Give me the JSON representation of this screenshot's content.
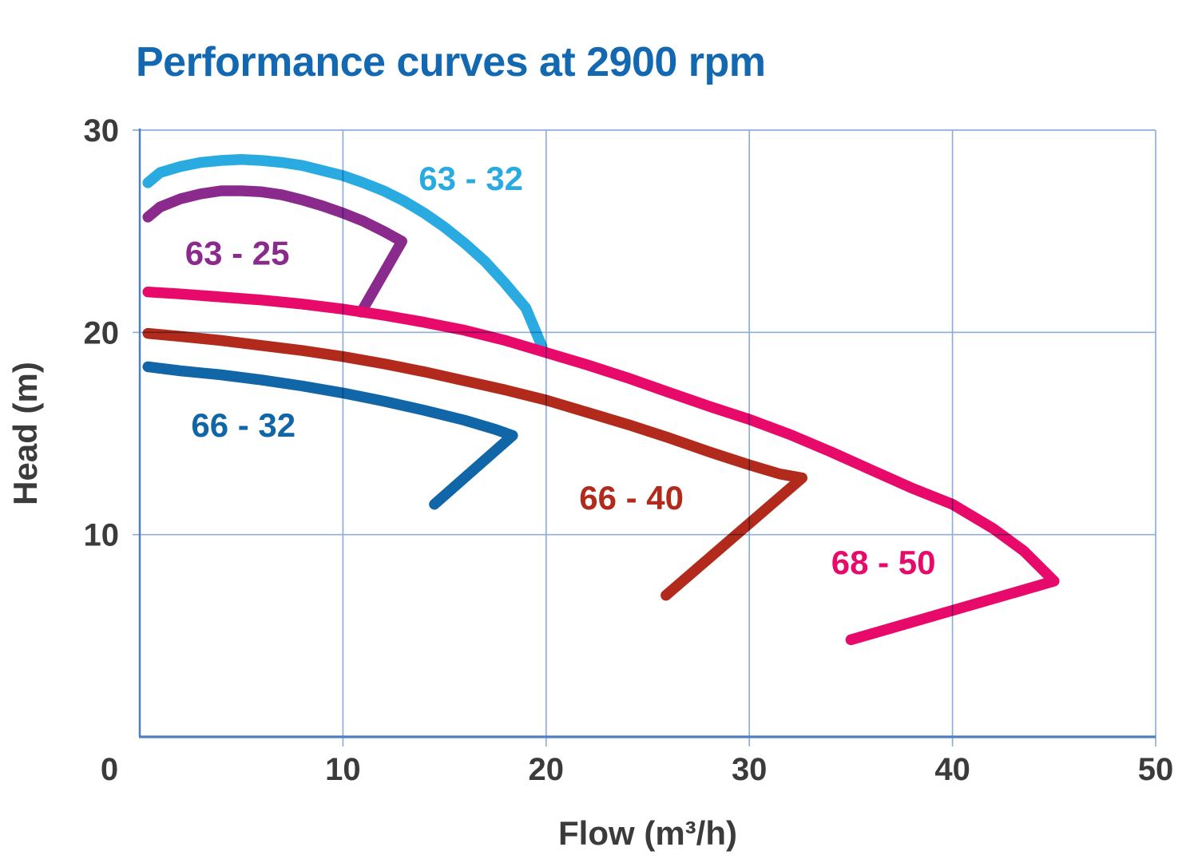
{
  "title": "Performance curves at 2900 rpm",
  "colors": {
    "title_text": "#1268B1",
    "tick_text": "#3B3B3B",
    "axis_line": "#4E7FC1",
    "grid_line": "#8FAEDB"
  },
  "chart_data": {
    "type": "line",
    "title": "Performance curves at 2900 rpm",
    "xlabel": "Flow (m³/h)",
    "ylabel": "Head (m)",
    "xlim": [
      0,
      50
    ],
    "ylim": [
      0,
      30
    ],
    "xticks": [
      0,
      10,
      20,
      30,
      40,
      50
    ],
    "yticks_labeled": [
      10,
      20,
      30
    ],
    "grid": true,
    "grid_note": "light blue gridlines drawn over the curves, full plot box bounded left/bottom by darker blue axes",
    "series": [
      {
        "name": "63 - 32",
        "color": "#29ABE2",
        "label_pos": [
          16.3,
          27.6
        ],
        "points": [
          [
            0.4,
            27.4
          ],
          [
            1,
            27.9
          ],
          [
            2,
            28.2
          ],
          [
            3,
            28.4
          ],
          [
            4,
            28.5
          ],
          [
            5,
            28.55
          ],
          [
            6,
            28.5
          ],
          [
            7,
            28.4
          ],
          [
            8,
            28.25
          ],
          [
            9,
            28.0
          ],
          [
            10,
            27.75
          ],
          [
            11,
            27.4
          ],
          [
            12,
            27.0
          ],
          [
            13,
            26.5
          ],
          [
            14,
            25.9
          ],
          [
            15,
            25.2
          ],
          [
            16,
            24.4
          ],
          [
            17,
            23.5
          ],
          [
            18,
            22.4
          ],
          [
            19,
            21.2
          ],
          [
            19.8,
            19.3
          ]
        ]
      },
      {
        "name": "63 - 25",
        "color": "#8A2A8C",
        "label_pos": [
          4.8,
          23.9
        ],
        "points": [
          [
            0.4,
            25.7
          ],
          [
            1,
            26.2
          ],
          [
            2,
            26.6
          ],
          [
            3,
            26.85
          ],
          [
            4,
            27.0
          ],
          [
            5,
            27.0
          ],
          [
            6,
            26.95
          ],
          [
            7,
            26.8
          ],
          [
            8,
            26.55
          ],
          [
            9,
            26.25
          ],
          [
            10,
            25.9
          ],
          [
            11,
            25.5
          ],
          [
            12,
            25.0
          ],
          [
            12.9,
            24.5
          ],
          [
            10.9,
            21.0
          ]
        ]
      },
      {
        "name": "66 - 32",
        "color": "#1166A8",
        "label_pos": [
          5.1,
          15.4
        ],
        "points": [
          [
            0.4,
            18.3
          ],
          [
            2,
            18.1
          ],
          [
            4,
            17.9
          ],
          [
            6,
            17.65
          ],
          [
            8,
            17.35
          ],
          [
            10,
            17.0
          ],
          [
            12,
            16.6
          ],
          [
            14,
            16.15
          ],
          [
            16,
            15.65
          ],
          [
            17.5,
            15.2
          ],
          [
            18.35,
            14.9
          ],
          [
            14.5,
            11.5
          ]
        ]
      },
      {
        "name": "66 - 40",
        "color": "#B12A1B",
        "label_pos": [
          24.2,
          11.8
        ],
        "points": [
          [
            0.4,
            19.95
          ],
          [
            2,
            19.8
          ],
          [
            4,
            19.6
          ],
          [
            6,
            19.35
          ],
          [
            8,
            19.1
          ],
          [
            10,
            18.8
          ],
          [
            12,
            18.45
          ],
          [
            14,
            18.05
          ],
          [
            16,
            17.6
          ],
          [
            18,
            17.15
          ],
          [
            20,
            16.65
          ],
          [
            22,
            16.05
          ],
          [
            24,
            15.45
          ],
          [
            26,
            14.8
          ],
          [
            28,
            14.1
          ],
          [
            30,
            13.45
          ],
          [
            31.5,
            13.0
          ],
          [
            32.6,
            12.8
          ],
          [
            25.9,
            7.0
          ]
        ]
      },
      {
        "name": "68 - 50",
        "color": "#E80A6B",
        "label_pos": [
          36.6,
          8.6
        ],
        "points": [
          [
            0.4,
            22.0
          ],
          [
            2,
            21.9
          ],
          [
            4,
            21.75
          ],
          [
            6,
            21.6
          ],
          [
            8,
            21.4
          ],
          [
            10,
            21.15
          ],
          [
            12,
            20.85
          ],
          [
            14,
            20.5
          ],
          [
            16,
            20.1
          ],
          [
            18,
            19.6
          ],
          [
            20,
            19.0
          ],
          [
            22,
            18.4
          ],
          [
            24,
            17.75
          ],
          [
            26,
            17.05
          ],
          [
            28,
            16.35
          ],
          [
            30,
            15.7
          ],
          [
            32,
            14.95
          ],
          [
            34,
            14.1
          ],
          [
            36,
            13.2
          ],
          [
            38,
            12.3
          ],
          [
            40,
            11.5
          ],
          [
            42,
            10.3
          ],
          [
            43.5,
            9.2
          ],
          [
            45,
            7.7
          ],
          [
            35,
            4.8
          ]
        ]
      }
    ]
  }
}
